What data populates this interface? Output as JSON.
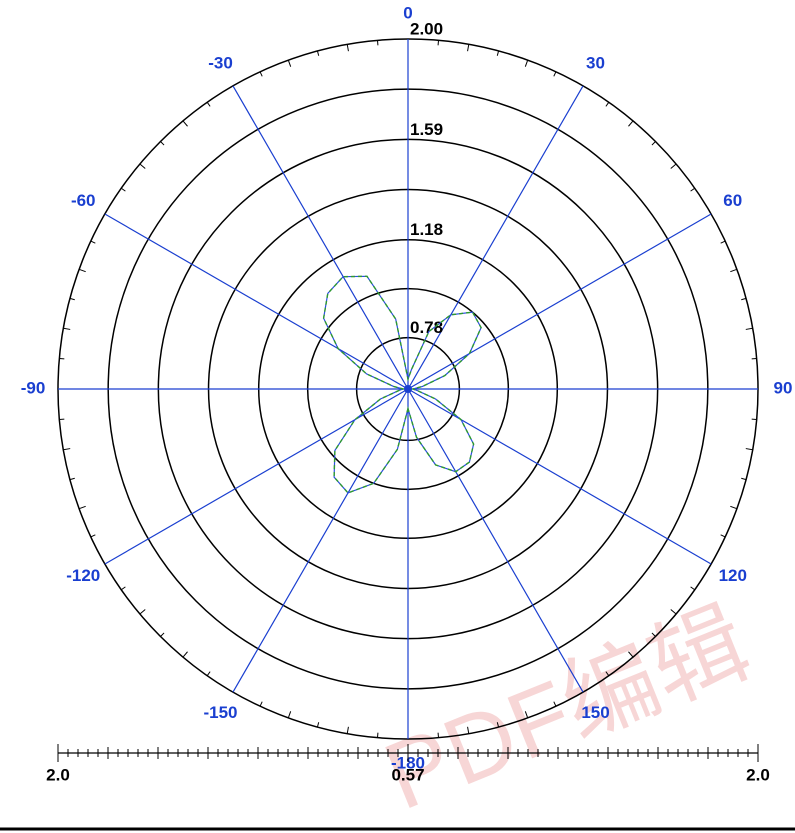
{
  "chart_data": {
    "type": "polar",
    "rlim": [
      0.57,
      2.0
    ],
    "rticks": [
      0.78,
      1.18,
      1.59,
      {
        "value": 2.0,
        "label": "2.00"
      }
    ],
    "rgrid_unlabeled": [
      0.98,
      1.385,
      1.795
    ],
    "thetaticks": [
      0,
      30,
      60,
      90,
      120,
      150,
      -180,
      -150,
      -120,
      -90,
      -60,
      -30
    ],
    "grid_color": "#1a3fd0",
    "series": [
      {
        "color": "#2e9a2e",
        "theta": [
          -180,
          -170,
          -160,
          -150,
          -140,
          -130,
          -120,
          -110,
          -100,
          -90,
          -80,
          -70,
          -60,
          -50,
          -40,
          -30,
          -20,
          -10,
          0,
          10,
          20,
          30,
          40,
          50,
          60,
          70,
          80,
          90,
          100,
          110,
          120,
          130,
          140,
          150,
          160,
          170
        ],
        "values": [
          0.65,
          0.82,
          0.98,
          1.06,
          1.04,
          0.96,
          0.82,
          0.69,
          0.61,
          0.59,
          0.63,
          0.75,
          0.9,
          1.02,
          1.08,
          1.1,
          1.06,
          0.86,
          0.61,
          0.65,
          0.82,
          0.92,
          0.98,
          0.96,
          0.86,
          0.73,
          0.63,
          0.59,
          0.61,
          0.69,
          0.82,
          0.92,
          0.96,
          0.96,
          0.9,
          0.77
        ]
      }
    ],
    "scale_bar_labels": [
      "2.0",
      "0.57",
      "2.0"
    ],
    "watermark": "PDF编辑"
  }
}
